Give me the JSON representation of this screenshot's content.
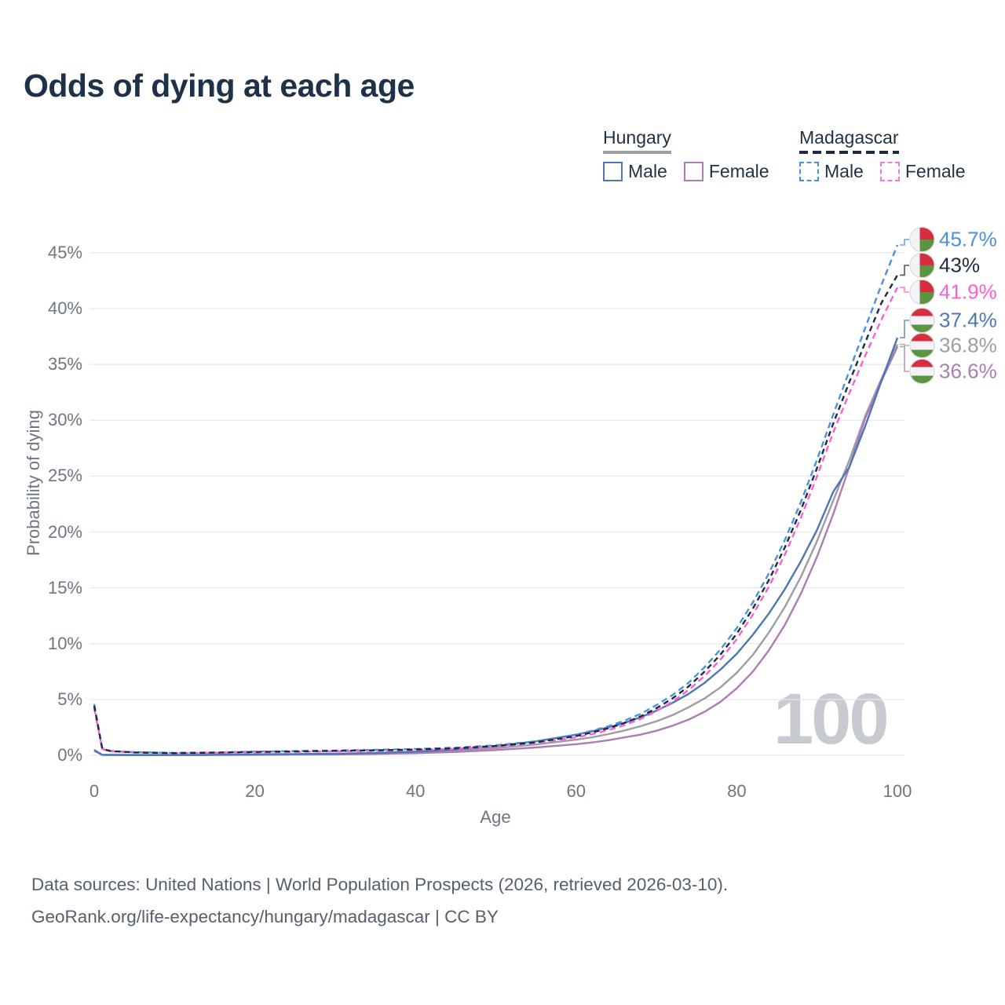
{
  "header": {
    "title": "Odds of dying at each age"
  },
  "legend": {
    "groups": [
      {
        "id": "hungary",
        "label": "Hungary",
        "line_style": "solid",
        "line_color": "#9d9da3",
        "items": [
          {
            "id": "hungary-male",
            "label": "Male",
            "color": "#4c77b5",
            "dashed": false
          },
          {
            "id": "hungary-female",
            "label": "Female",
            "color": "#ad7cb5",
            "dashed": false
          }
        ]
      },
      {
        "id": "madagascar",
        "label": "Madagascar",
        "line_style": "dashed",
        "line_color": "#1e2c3c",
        "items": [
          {
            "id": "madagascar-male",
            "label": "Male",
            "color": "#4a90e2",
            "dashed": true
          },
          {
            "id": "madagascar-female",
            "label": "Female",
            "color": "#fa75e0",
            "dashed": true
          }
        ]
      }
    ]
  },
  "watermark": "100",
  "footer": {
    "line1": "Data sources: United Nations | World Population Prospects (2026, retrieved 2026-03-10).",
    "line2": "GeoRank.org/life-expectancy/hungary/madagascar | CC BY"
  },
  "chart_data": {
    "type": "line",
    "title": "Odds of dying at each age",
    "xlabel": "Age",
    "ylabel": "Probability of dying",
    "xlim": [
      0,
      100
    ],
    "ylim": [
      0,
      46.5
    ],
    "grid": "horizontal",
    "legend_position": "top-right",
    "x_ticks": [
      {
        "value": 0,
        "label": "0"
      },
      {
        "value": 20,
        "label": "20"
      },
      {
        "value": 40,
        "label": "40"
      },
      {
        "value": 60,
        "label": "60"
      },
      {
        "value": 80,
        "label": "80"
      },
      {
        "value": 100,
        "label": "100"
      }
    ],
    "y_ticks": [
      {
        "value": 0,
        "label": "0%"
      },
      {
        "value": 5,
        "label": "5%"
      },
      {
        "value": 10,
        "label": "10%"
      },
      {
        "value": 15,
        "label": "15%"
      },
      {
        "value": 20,
        "label": "20%"
      },
      {
        "value": 25,
        "label": "25%"
      },
      {
        "value": 30,
        "label": "30%"
      },
      {
        "value": 35,
        "label": "35%"
      },
      {
        "value": 40,
        "label": "40%"
      },
      {
        "value": 45,
        "label": "45%"
      }
    ],
    "ages": [
      0,
      1,
      2,
      5,
      10,
      15,
      20,
      25,
      30,
      35,
      40,
      45,
      50,
      55,
      60,
      62,
      64,
      66,
      68,
      70,
      72,
      74,
      76,
      78,
      80,
      82,
      84,
      86,
      88,
      90,
      92,
      94,
      96,
      98,
      100
    ],
    "series": [
      {
        "id": "madagascar-male",
        "name": "Madagascar Male",
        "country": "Madagascar",
        "sex": "Male",
        "color": "#4a90e2",
        "dash": "dashed",
        "flag": "madagascar",
        "end_label": "45.7%",
        "end_value": 45.7,
        "values": [
          4.6,
          0.62,
          0.4,
          0.28,
          0.22,
          0.26,
          0.33,
          0.38,
          0.43,
          0.49,
          0.57,
          0.68,
          0.9,
          1.25,
          1.85,
          2.2,
          2.6,
          3.1,
          3.7,
          4.5,
          5.4,
          6.5,
          7.9,
          9.5,
          11.4,
          13.7,
          16.3,
          19.3,
          22.7,
          26.5,
          30.5,
          34.4,
          38.3,
          42.1,
          45.7
        ]
      },
      {
        "id": "madagascar-both",
        "name": "Madagascar Both sexes",
        "country": "Madagascar",
        "sex": "Both",
        "color": "#1e2c3c",
        "dash": "dashed",
        "flag": "madagascar",
        "end_label": "43%",
        "end_value": 43,
        "values": [
          4.43,
          0.59,
          0.38,
          0.26,
          0.2,
          0.24,
          0.3,
          0.35,
          0.4,
          0.45,
          0.52,
          0.63,
          0.84,
          1.17,
          1.72,
          2.05,
          2.42,
          2.9,
          3.47,
          4.22,
          5.1,
          6.17,
          7.5,
          9.05,
          10.9,
          13.15,
          15.7,
          18.65,
          22.0,
          25.75,
          29.7,
          33.4,
          37.0,
          40.5,
          43.0
        ]
      },
      {
        "id": "madagascar-female",
        "name": "Madagascar Female",
        "country": "Madagascar",
        "sex": "Female",
        "color": "#fa5fd5",
        "dash": "dashed",
        "flag": "madagascar",
        "end_label": "41.9%",
        "end_value": 41.9,
        "values": [
          4.25,
          0.56,
          0.36,
          0.25,
          0.19,
          0.22,
          0.27,
          0.31,
          0.36,
          0.41,
          0.48,
          0.58,
          0.78,
          1.1,
          1.6,
          1.9,
          2.25,
          2.7,
          3.25,
          3.95,
          4.8,
          5.85,
          7.1,
          8.6,
          10.4,
          12.6,
          15.1,
          18.0,
          21.3,
          25.0,
          28.9,
          32.4,
          35.8,
          39.0,
          41.9
        ]
      },
      {
        "id": "hungary-male",
        "name": "Hungary Male",
        "country": "Hungary",
        "sex": "Male",
        "color": "#4c77b5",
        "dash": "solid",
        "flag": "hungary",
        "end_label": "37.4%",
        "end_value": 37.4,
        "values": [
          0.48,
          0.05,
          0.04,
          0.03,
          0.03,
          0.05,
          0.09,
          0.11,
          0.14,
          0.21,
          0.33,
          0.52,
          0.82,
          1.25,
          1.85,
          2.15,
          2.5,
          2.9,
          3.4,
          4.0,
          4.7,
          5.5,
          6.5,
          7.7,
          9.1,
          10.8,
          12.7,
          14.9,
          17.4,
          20.2,
          23.6,
          25.8,
          29.5,
          33.5,
          37.4
        ]
      },
      {
        "id": "hungary-both",
        "name": "Hungary Both sexes",
        "country": "Hungary",
        "sex": "Both",
        "color": "#9d9da3",
        "dash": "solid",
        "flag": "hungary",
        "end_label": "36.8%",
        "end_value": 36.8,
        "values": [
          0.44,
          0.045,
          0.035,
          0.025,
          0.025,
          0.04,
          0.065,
          0.085,
          0.11,
          0.165,
          0.26,
          0.41,
          0.64,
          0.97,
          1.4,
          1.62,
          1.9,
          2.22,
          2.6,
          3.05,
          3.6,
          4.3,
          5.1,
          6.1,
          7.4,
          9.0,
          11.0,
          13.3,
          16.0,
          19.2,
          22.8,
          26.4,
          30.4,
          33.7,
          36.8
        ]
      },
      {
        "id": "hungary-female",
        "name": "Hungary Female",
        "country": "Hungary",
        "sex": "Female",
        "color": "#ad7cb5",
        "dash": "solid",
        "flag": "hungary",
        "end_label": "36.6%",
        "end_value": 36.6,
        "values": [
          0.4,
          0.04,
          0.03,
          0.02,
          0.02,
          0.03,
          0.04,
          0.06,
          0.08,
          0.12,
          0.19,
          0.3,
          0.47,
          0.7,
          1.0,
          1.15,
          1.35,
          1.6,
          1.85,
          2.2,
          2.65,
          3.2,
          3.9,
          4.8,
          6.0,
          7.5,
          9.4,
          11.7,
          14.5,
          17.8,
          21.6,
          25.8,
          30.2,
          33.5,
          36.6
        ]
      }
    ]
  }
}
